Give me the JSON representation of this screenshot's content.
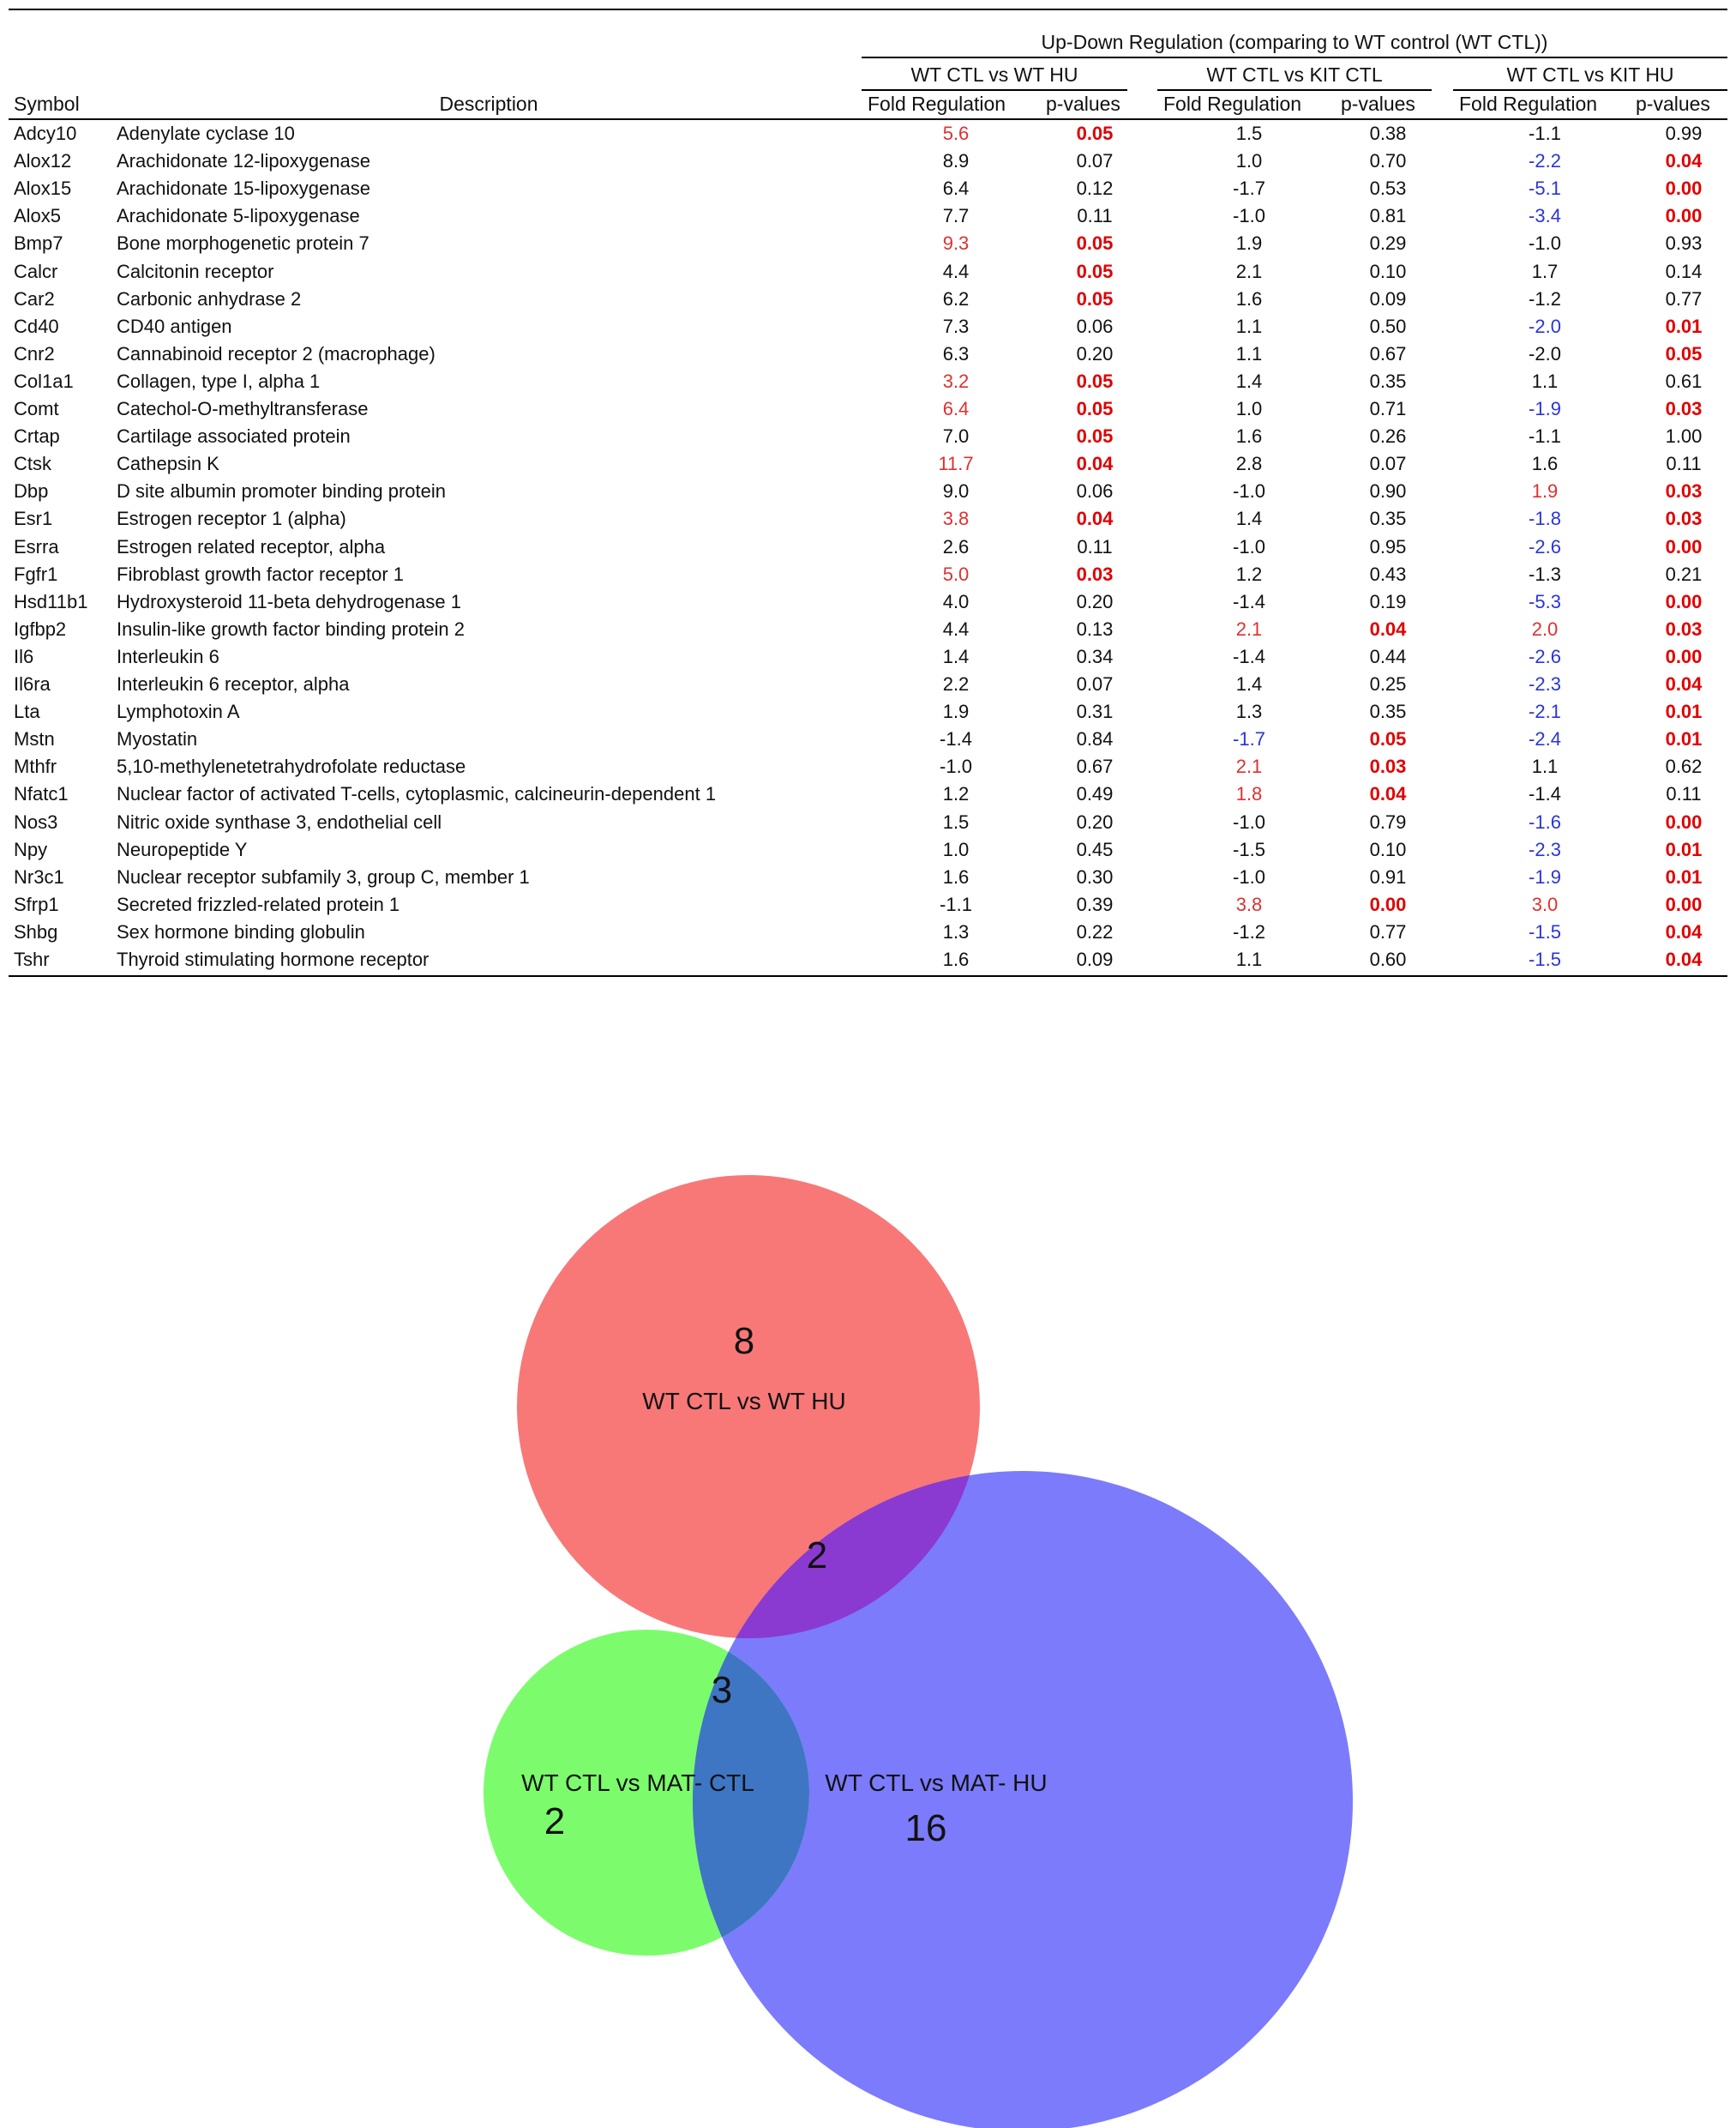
{
  "table": {
    "group_title": "Up-Down Regulation (comparing to WT control (WT CTL))",
    "comparisons": [
      "WT CTL vs WT HU",
      "WT CTL vs KIT CTL",
      "WT CTL vs KIT HU"
    ],
    "headers": {
      "symbol": "Symbol",
      "description": "Description",
      "fold": "Fold Regulation",
      "pval": "p-values"
    },
    "rows": [
      {
        "sym": "Adcy10",
        "desc": "Adenylate cyclase 10",
        "v": [
          "5.6",
          "0.05",
          "1.5",
          "0.38",
          "-1.1",
          "0.99"
        ],
        "hl": [
          1,
          0,
          0
        ]
      },
      {
        "sym": "Alox12",
        "desc": "Arachidonate 12-lipoxygenase",
        "v": [
          "8.9",
          "0.07",
          "1.0",
          "0.70",
          "-2.2",
          "0.04"
        ],
        "hl": [
          0,
          0,
          -1
        ]
      },
      {
        "sym": "Alox15",
        "desc": "Arachidonate 15-lipoxygenase",
        "v": [
          "6.4",
          "0.12",
          "-1.7",
          "0.53",
          "-5.1",
          "0.00"
        ],
        "hl": [
          0,
          0,
          -1
        ]
      },
      {
        "sym": "Alox5",
        "desc": "Arachidonate 5-lipoxygenase",
        "v": [
          "7.7",
          "0.11",
          "-1.0",
          "0.81",
          "-3.4",
          "0.00"
        ],
        "hl": [
          0,
          0,
          -1
        ]
      },
      {
        "sym": "Bmp7",
        "desc": "Bone morphogenetic protein 7",
        "v": [
          "9.3",
          "0.05",
          "1.9",
          "0.29",
          "-1.0",
          "0.93"
        ],
        "hl": [
          1,
          0,
          0
        ]
      },
      {
        "sym": "Calcr",
        "desc": "Calcitonin receptor",
        "v": [
          "4.4",
          "0.05",
          "2.1",
          "0.10",
          "1.7",
          "0.14"
        ],
        "hl": [
          2,
          0,
          0
        ]
      },
      {
        "sym": "Car2",
        "desc": "Carbonic anhydrase 2",
        "v": [
          "6.2",
          "0.05",
          "1.6",
          "0.09",
          "-1.2",
          "0.77"
        ],
        "hl": [
          2,
          0,
          0
        ]
      },
      {
        "sym": "Cd40",
        "desc": "CD40 antigen",
        "v": [
          "7.3",
          "0.06",
          "1.1",
          "0.50",
          "-2.0",
          "0.01"
        ],
        "hl": [
          0,
          0,
          -1
        ]
      },
      {
        "sym": "Cnr2",
        "desc": "Cannabinoid receptor 2 (macrophage)",
        "v": [
          "6.3",
          "0.20",
          "1.1",
          "0.67",
          "-2.0",
          "0.05"
        ],
        "hl": [
          0,
          0,
          2
        ]
      },
      {
        "sym": "Col1a1",
        "desc": "Collagen, type I, alpha 1",
        "v": [
          "3.2",
          "0.05",
          "1.4",
          "0.35",
          "1.1",
          "0.61"
        ],
        "hl": [
          1,
          0,
          0
        ]
      },
      {
        "sym": "Comt",
        "desc": "Catechol-O-methyltransferase",
        "v": [
          "6.4",
          "0.05",
          "1.0",
          "0.71",
          "-1.9",
          "0.03"
        ],
        "hl": [
          1,
          0,
          -1
        ]
      },
      {
        "sym": "Crtap",
        "desc": "Cartilage associated protein",
        "v": [
          "7.0",
          "0.05",
          "1.6",
          "0.26",
          "-1.1",
          "1.00"
        ],
        "hl": [
          2,
          0,
          0
        ]
      },
      {
        "sym": "Ctsk",
        "desc": "Cathepsin K",
        "v": [
          "11.7",
          "0.04",
          "2.8",
          "0.07",
          "1.6",
          "0.11"
        ],
        "hl": [
          1,
          0,
          0
        ]
      },
      {
        "sym": "Dbp",
        "desc": "D site albumin promoter binding protein",
        "v": [
          "9.0",
          "0.06",
          "-1.0",
          "0.90",
          "1.9",
          "0.03"
        ],
        "hl": [
          0,
          0,
          1
        ]
      },
      {
        "sym": "Esr1",
        "desc": "Estrogen receptor 1 (alpha)",
        "v": [
          "3.8",
          "0.04",
          "1.4",
          "0.35",
          "-1.8",
          "0.03"
        ],
        "hl": [
          1,
          0,
          -1
        ]
      },
      {
        "sym": "Esrra",
        "desc": "Estrogen related receptor, alpha",
        "v": [
          "2.6",
          "0.11",
          "-1.0",
          "0.95",
          "-2.6",
          "0.00"
        ],
        "hl": [
          0,
          0,
          -1
        ]
      },
      {
        "sym": "Fgfr1",
        "desc": "Fibroblast growth factor receptor 1",
        "v": [
          "5.0",
          "0.03",
          "1.2",
          "0.43",
          "-1.3",
          "0.21"
        ],
        "hl": [
          1,
          0,
          0
        ]
      },
      {
        "sym": "Hsd11b1",
        "desc": "Hydroxysteroid 11-beta dehydrogenase 1",
        "v": [
          "4.0",
          "0.20",
          "-1.4",
          "0.19",
          "-5.3",
          "0.00"
        ],
        "hl": [
          0,
          0,
          -1
        ]
      },
      {
        "sym": "Igfbp2",
        "desc": "Insulin-like growth factor binding protein 2",
        "v": [
          "4.4",
          "0.13",
          "2.1",
          "0.04",
          "2.0",
          "0.03"
        ],
        "hl": [
          0,
          1,
          1
        ]
      },
      {
        "sym": "Il6",
        "desc": "Interleukin 6",
        "v": [
          "1.4",
          "0.34",
          "-1.4",
          "0.44",
          "-2.6",
          "0.00"
        ],
        "hl": [
          0,
          0,
          -1
        ]
      },
      {
        "sym": "Il6ra",
        "desc": "Interleukin 6 receptor, alpha",
        "v": [
          "2.2",
          "0.07",
          "1.4",
          "0.25",
          "-2.3",
          "0.04"
        ],
        "hl": [
          0,
          0,
          -1
        ]
      },
      {
        "sym": "Lta",
        "desc": "Lymphotoxin A",
        "v": [
          "1.9",
          "0.31",
          "1.3",
          "0.35",
          "-2.1",
          "0.01"
        ],
        "hl": [
          0,
          0,
          -1
        ]
      },
      {
        "sym": "Mstn",
        "desc": "Myostatin",
        "v": [
          "-1.4",
          "0.84",
          "-1.7",
          "0.05",
          "-2.4",
          "0.01"
        ],
        "hl": [
          0,
          -1,
          -1
        ]
      },
      {
        "sym": "Mthfr",
        "desc": "5,10-methylenetetrahydrofolate reductase",
        "v": [
          "-1.0",
          "0.67",
          "2.1",
          "0.03",
          "1.1",
          "0.62"
        ],
        "hl": [
          0,
          1,
          0
        ]
      },
      {
        "sym": "Nfatc1",
        "desc": "Nuclear factor of activated T-cells, cytoplasmic, calcineurin-dependent 1",
        "v": [
          "1.2",
          "0.49",
          "1.8",
          "0.04",
          "-1.4",
          "0.11"
        ],
        "hl": [
          0,
          1,
          0
        ]
      },
      {
        "sym": "Nos3",
        "desc": "Nitric oxide synthase 3, endothelial cell",
        "v": [
          "1.5",
          "0.20",
          "-1.0",
          "0.79",
          "-1.6",
          "0.00"
        ],
        "hl": [
          0,
          0,
          -1
        ]
      },
      {
        "sym": "Npy",
        "desc": "Neuropeptide Y",
        "v": [
          "1.0",
          "0.45",
          "-1.5",
          "0.10",
          "-2.3",
          "0.01"
        ],
        "hl": [
          0,
          0,
          -1
        ]
      },
      {
        "sym": "Nr3c1",
        "desc": "Nuclear receptor subfamily 3, group C, member 1",
        "v": [
          "1.6",
          "0.30",
          "-1.0",
          "0.91",
          "-1.9",
          "0.01"
        ],
        "hl": [
          0,
          0,
          -1
        ]
      },
      {
        "sym": "Sfrp1",
        "desc": "Secreted frizzled-related protein 1",
        "v": [
          "-1.1",
          "0.39",
          "3.8",
          "0.00",
          "3.0",
          "0.00"
        ],
        "hl": [
          0,
          1,
          1
        ]
      },
      {
        "sym": "Shbg",
        "desc": "Sex hormone binding globulin",
        "v": [
          "1.3",
          "0.22",
          "-1.2",
          "0.77",
          "-1.5",
          "0.04"
        ],
        "hl": [
          0,
          0,
          -1
        ]
      },
      {
        "sym": "Tshr",
        "desc": "Thyroid stimulating hormone receptor",
        "v": [
          "1.6",
          "0.09",
          "1.1",
          "0.60",
          "-1.5",
          "0.04"
        ],
        "hl": [
          0,
          0,
          -1
        ]
      }
    ]
  },
  "venn": {
    "sets": [
      {
        "label": "WT CTL vs WT HU",
        "color": "#f87878"
      },
      {
        "label": "WT CTL vs MAT- CTL",
        "color": "#7cfc6c"
      },
      {
        "label": "WT CTL vs MAT- HU",
        "color": "#7b7bfb"
      }
    ],
    "overlap_colors": {
      "red_blue": "#8a3ad0",
      "green_blue": "#3e76c4"
    },
    "counts": {
      "hu_only": "8",
      "hu_mathu": "2",
      "matctl_mathu": "3",
      "matctl_only": "2",
      "mathu_only": "16"
    }
  }
}
